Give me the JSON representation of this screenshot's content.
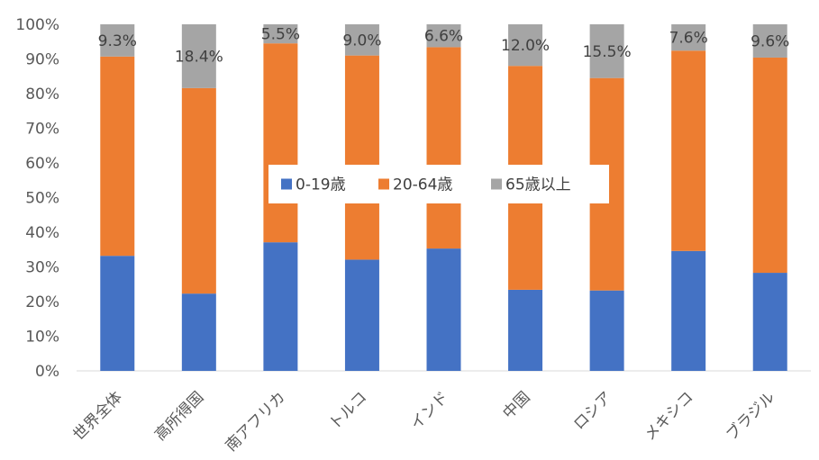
{
  "chart_data": {
    "type": "bar",
    "stacked": "percent",
    "categories": [
      "世界全体",
      "高所得国",
      "南アフリカ",
      "トルコ",
      "インド",
      "中国",
      "ロシア",
      "メキシコ",
      "ブラジル"
    ],
    "series": [
      {
        "name": "0-19歳",
        "color": "#4472C4",
        "values": [
          33.2,
          22.3,
          37.1,
          32.1,
          35.3,
          23.4,
          23.2,
          34.6,
          28.3
        ]
      },
      {
        "name": "20-64歳",
        "color": "#ED7D31",
        "values": [
          57.5,
          59.3,
          57.4,
          58.9,
          58.1,
          64.6,
          61.3,
          57.8,
          62.1
        ]
      },
      {
        "name": "65歳以上",
        "color": "#A5A5A5",
        "values": [
          9.3,
          18.4,
          5.5,
          9.0,
          6.6,
          12.0,
          15.5,
          7.6,
          9.6
        ]
      }
    ],
    "data_labels": [
      "9.3%",
      "18.4%",
      "5.5%",
      "9.0%",
      "6.6%",
      "12.0%",
      "15.5%",
      "7.6%",
      "9.6%"
    ],
    "y_ticks": [
      "0%",
      "10%",
      "20%",
      "30%",
      "40%",
      "50%",
      "60%",
      "70%",
      "80%",
      "90%",
      "100%"
    ],
    "ylim": [
      0,
      100
    ],
    "legend": "center",
    "grid": false
  }
}
